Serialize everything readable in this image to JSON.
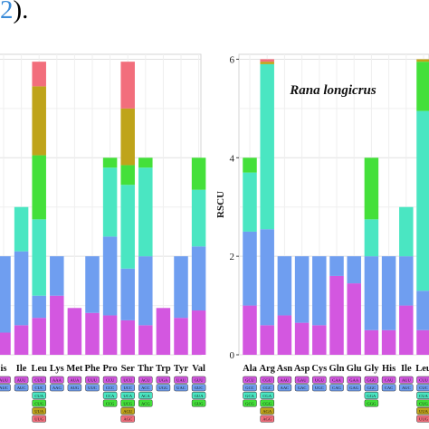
{
  "header": {
    "fragment_bracket": "(",
    "fragment_number": "2",
    "fragment_close": ")."
  },
  "chart_data": [
    {
      "type": "bar",
      "stacked": true,
      "title": "",
      "xlabel": "",
      "ylabel": "",
      "ylim": [
        0,
        6.1
      ],
      "grid": true,
      "categories": [
        "His",
        "Ile",
        "Leu",
        "Lys",
        "Met",
        "Phe",
        "Pro",
        "Ser",
        "Thr",
        "Trp",
        "Tyr",
        "Val"
      ],
      "tick_labels": [
        "is",
        "Ile",
        "Leu",
        "Lys",
        "Met",
        "Phe",
        "Pro",
        "Ser",
        "Thr",
        "Trp",
        "Tyr",
        "Val"
      ],
      "series": [
        {
          "color": "#d357e0",
          "values": [
            0.45,
            0.6,
            0.75,
            1.2,
            0.95,
            0.85,
            0.8,
            0.7,
            0.6,
            0.95,
            0.75,
            0.9
          ]
        },
        {
          "color": "#6f9ef0",
          "values": [
            1.55,
            1.5,
            0.45,
            0.8,
            0.0,
            1.15,
            1.6,
            1.05,
            1.4,
            0.0,
            1.25,
            1.3
          ]
        },
        {
          "color": "#4ae6c2",
          "values": [
            0.0,
            0.9,
            1.55,
            0.0,
            0.0,
            0.0,
            1.4,
            1.7,
            1.8,
            0.0,
            0.0,
            1.15
          ]
        },
        {
          "color": "#44e03a",
          "values": [
            0.0,
            0.0,
            1.3,
            0.0,
            0.0,
            0.0,
            0.2,
            0.4,
            0.2,
            0.0,
            0.0,
            0.65
          ]
        },
        {
          "color": "#bfa41a",
          "values": [
            0.0,
            0.0,
            1.4,
            0.0,
            0.0,
            0.0,
            0.0,
            1.15,
            0.0,
            0.0,
            0.0,
            0.0
          ]
        },
        {
          "color": "#f26e7c",
          "values": [
            0.0,
            0.0,
            0.5,
            0.0,
            0.0,
            0.0,
            0.0,
            0.95,
            0.0,
            0.0,
            0.0,
            0.0
          ]
        }
      ],
      "codons": [
        [
          "AUU",
          "AUC"
        ],
        [
          "AUU",
          "AUC"
        ],
        [
          "CUU",
          "CUC",
          "CUA",
          "CUG",
          "UUA",
          "UUG"
        ],
        [
          "AAA",
          "AAG"
        ],
        [
          "AUA",
          "AUG"
        ],
        [
          "UUU",
          "UUC"
        ],
        [
          "CCU",
          "CCC",
          "CCA",
          "CCG"
        ],
        [
          "UCU",
          "UCC",
          "UCA",
          "UCG",
          "AGU",
          "AGC"
        ],
        [
          "ACU",
          "ACC",
          "ACA",
          "ACG"
        ],
        [
          "UGA",
          "UGG"
        ],
        [
          "UAU",
          "UAC"
        ],
        [
          "GUU",
          "GUC",
          "GUA",
          "GUG"
        ]
      ]
    },
    {
      "type": "bar",
      "stacked": true,
      "title": "Rana longicrus",
      "xlabel": "",
      "ylabel": "RSCU",
      "ylim": [
        0,
        6.1
      ],
      "yticks": [
        0,
        2,
        4,
        6
      ],
      "grid": true,
      "categories": [
        "Ala",
        "Arg",
        "Asn",
        "Asp",
        "Cys",
        "Gln",
        "Glu",
        "Gly",
        "His",
        "Ile",
        "Leu"
      ],
      "tick_labels": [
        "Ala",
        "Arg",
        "Asn",
        "Asp",
        "Cys",
        "Gln",
        "Glu",
        "Gly",
        "His",
        "Ile",
        "Leu"
      ],
      "series": [
        {
          "color": "#d357e0",
          "values": [
            1.0,
            0.6,
            0.8,
            0.65,
            0.6,
            1.6,
            1.45,
            0.5,
            0.5,
            1.0,
            0.5
          ]
        },
        {
          "color": "#6f9ef0",
          "values": [
            1.5,
            1.95,
            1.2,
            1.35,
            1.4,
            0.4,
            0.55,
            1.5,
            1.5,
            1.0,
            0.8
          ]
        },
        {
          "color": "#4ae6c2",
          "values": [
            1.2,
            3.35,
            0.0,
            0.0,
            0.0,
            0.0,
            0.0,
            0.75,
            0.0,
            1.0,
            3.65
          ]
        },
        {
          "color": "#44e03a",
          "values": [
            0.3,
            0.0,
            0.0,
            0.0,
            0.0,
            0.0,
            0.0,
            1.25,
            0.0,
            0.0,
            1.0
          ]
        },
        {
          "color": "#bfa41a",
          "values": [
            0.0,
            0.05,
            0.0,
            0.0,
            0.0,
            0.0,
            0.0,
            0.0,
            0.0,
            0.0,
            0.05
          ]
        },
        {
          "color": "#f26e7c",
          "values": [
            0.0,
            0.05,
            0.0,
            0.0,
            0.0,
            0.0,
            0.0,
            0.0,
            0.0,
            0.0,
            0.0
          ]
        }
      ],
      "codons": [
        [
          "GCU",
          "GCC",
          "GCA",
          "GCG"
        ],
        [
          "CGU",
          "CGC",
          "CGA",
          "CGG",
          "AGA",
          "AGG"
        ],
        [
          "AAU",
          "AAC"
        ],
        [
          "GAU",
          "GAC"
        ],
        [
          "UGU",
          "UGC"
        ],
        [
          "CAA",
          "CAG"
        ],
        [
          "GAA",
          "GAG"
        ],
        [
          "GGU",
          "GGC",
          "GGA",
          "GGG"
        ],
        [
          "CAU",
          "CAC"
        ],
        [
          "AUU",
          "AUC"
        ],
        [
          "CUU",
          "CUC",
          "CUA",
          "CUG",
          "UUA",
          "UUG"
        ]
      ]
    }
  ]
}
